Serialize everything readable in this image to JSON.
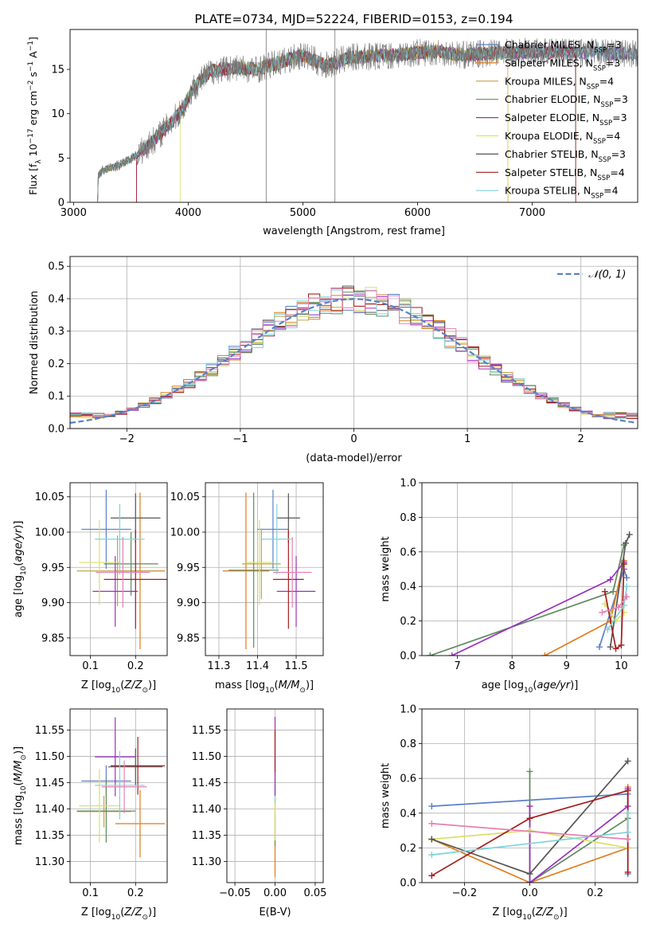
{
  "colors": {
    "c1": "#5b80c8",
    "c2": "#e07b1a",
    "c3": "#c2a24a",
    "c4": "#5f8a5f",
    "c5": "#9b2fbf",
    "c6": "#d9e06a",
    "c7": "#555555",
    "c8": "#a61c1c",
    "c9": "#7fd3d8",
    "pink": "#e87fb2",
    "spectrum": "#777777"
  },
  "chart_data": [
    {
      "id": "spectrum",
      "type": "line",
      "title": "PLATE=0734, MJD=52224, FIBERID=0153, z=0.194",
      "xlabel": "wavelength [Angstrom, rest frame]",
      "ylabel": "Flux [f_λ 10^-17 erg cm^-2 s^-1 A^-1]",
      "xlim": [
        2970,
        7920
      ],
      "ylim": [
        0,
        19.5
      ],
      "xticks": [
        "3000",
        "4000",
        "5000",
        "6000",
        "7000"
      ],
      "yticks": [
        "0",
        "5",
        "10",
        "15"
      ],
      "grid": false,
      "legend_position": "upper-right",
      "legend": [
        {
          "text": "Chabrier MILES, N",
          "sub": "SSP",
          "tail": "=3",
          "color": "#5b80c8"
        },
        {
          "text": "Salpeter MILES, N",
          "sub": "SSP",
          "tail": "=3",
          "color": "#e07b1a"
        },
        {
          "text": "Kroupa MILES, N",
          "sub": "SSP",
          "tail": "=4",
          "color": "#c2a24a"
        },
        {
          "text": "Chabrier ELODIE, N",
          "sub": "SSP",
          "tail": "=3",
          "color": "#5f8a5f"
        },
        {
          "text": "Salpeter ELODIE, N",
          "sub": "SSP",
          "tail": "=3",
          "color": "#9b2fbf"
        },
        {
          "text": "Kroupa ELODIE, N",
          "sub": "SSP",
          "tail": "=4",
          "color": "#d9e06a"
        },
        {
          "text": "Chabrier STELIB, N",
          "sub": "SSP",
          "tail": "=3",
          "color": "#555555"
        },
        {
          "text": "Salpeter STELIB, N",
          "sub": "SSP",
          "tail": "=4",
          "color": "#a61c1c"
        },
        {
          "text": "Kroupa STELIB, N",
          "sub": "SSP",
          "tail": "=4",
          "color": "#7fd3d8"
        }
      ],
      "continuum_nodes": [
        [
          3210,
          0
        ],
        [
          3215,
          3.0
        ],
        [
          3250,
          3.6
        ],
        [
          3400,
          4.2
        ],
        [
          3550,
          5.3
        ],
        [
          3700,
          7.0
        ],
        [
          3850,
          9.0
        ],
        [
          3950,
          10.5
        ],
        [
          4050,
          13.0
        ],
        [
          4200,
          14.8
        ],
        [
          4400,
          15.2
        ],
        [
          4600,
          15.0
        ],
        [
          4800,
          15.8
        ],
        [
          5000,
          16.6
        ],
        [
          5200,
          15.4
        ],
        [
          5400,
          16.3
        ],
        [
          5600,
          16.5
        ],
        [
          5800,
          16.6
        ],
        [
          6000,
          16.9
        ],
        [
          6200,
          17.0
        ],
        [
          6400,
          16.6
        ],
        [
          6600,
          16.8
        ],
        [
          6800,
          16.9
        ],
        [
          7000,
          17.0
        ],
        [
          7200,
          16.9
        ],
        [
          7500,
          16.9
        ],
        [
          7800,
          16.8
        ]
      ],
      "model_starts": [
        3210,
        3210,
        3210,
        3210,
        3550,
        3930,
        3210,
        3550,
        3210
      ],
      "model_ends": [
        7920,
        6790,
        6790,
        7380,
        7920,
        6790,
        7920,
        7380,
        7920
      ],
      "spikes": [
        4680,
        5280
      ]
    },
    {
      "id": "residuals",
      "type": "histogram",
      "xlabel": "(data-model)/error",
      "ylabel": "Normed distribution",
      "xlim": [
        -2.5,
        2.5
      ],
      "ylim": [
        0,
        0.53
      ],
      "xticks": [
        "−2",
        "−1",
        "0",
        "1",
        "2"
      ],
      "yticks": [
        "0.0",
        "0.1",
        "0.2",
        "0.3",
        "0.4",
        "0.5"
      ],
      "grid": true,
      "legend_position": "upper-right",
      "legend": [
        {
          "text": "𝒩(0, 1)",
          "color": "#5b80c8",
          "dashed": true
        }
      ],
      "bin_width": 0.1
    },
    {
      "id": "age-vs-metallicity",
      "type": "errorbar",
      "xlabel": "Z [log10(Z/Z⊙)]",
      "ylabel": "age  [log10(age/yr)]",
      "xlim": [
        0.055,
        0.27
      ],
      "ylim": [
        9.825,
        10.07
      ],
      "xticks": [
        "0.1",
        "0.2"
      ],
      "yticks": [
        "9.85",
        "9.90",
        "9.95",
        "10.00",
        "10.05"
      ],
      "grid": true,
      "points": [
        {
          "x": 0.135,
          "xerr": 0.055,
          "y": 10.004,
          "yerr": 0.056,
          "color": "#5b80c8"
        },
        {
          "x": 0.21,
          "xerr": 0.055,
          "y": 9.945,
          "yerr": 0.111,
          "color": "#e07b1a"
        },
        {
          "x": 0.16,
          "xerr": 0.09,
          "y": 9.945,
          "yerr": 0.05,
          "color": "#c2a24a"
        },
        {
          "x": 0.19,
          "xerr": 0.06,
          "y": 9.955,
          "yerr": 0.045,
          "color": "#5f8a5f"
        },
        {
          "x": 0.155,
          "xerr": 0.05,
          "y": 9.916,
          "yerr": 0.05,
          "color": "#9b2fbf"
        },
        {
          "x": 0.12,
          "xerr": 0.045,
          "y": 9.957,
          "yerr": 0.06,
          "color": "#d9e06a"
        },
        {
          "x": 0.2,
          "xerr": 0.055,
          "y": 10.02,
          "yerr": 0.035,
          "color": "#555555"
        },
        {
          "x": 0.2,
          "xerr": 0.07,
          "y": 9.933,
          "yerr": 0.07,
          "color": "#a61c1c"
        },
        {
          "x": 0.165,
          "xerr": 0.055,
          "y": 9.99,
          "yerr": 0.05,
          "color": "#7fd3d8"
        },
        {
          "x": 0.172,
          "xerr": 0.06,
          "y": 9.943,
          "yerr": 0.05,
          "color": "#e87fb2"
        }
      ]
    },
    {
      "id": "age-vs-mass",
      "type": "errorbar",
      "xlabel": "mass [log10(M/M⊙)]",
      "ylabel": "",
      "xlim": [
        11.265,
        11.57
      ],
      "ylim": [
        9.825,
        10.07
      ],
      "xticks": [
        "11.3",
        "11.4",
        "11.5"
      ],
      "yticks": [
        "9.85",
        "9.90",
        "9.95",
        "10.00",
        "10.05"
      ],
      "grid": true,
      "points": [
        {
          "x": 11.44,
          "xerr": 0.04,
          "y": 10.004,
          "yerr": 0.056,
          "color": "#5b80c8"
        },
        {
          "x": 11.37,
          "xerr": 0.06,
          "y": 9.945,
          "yerr": 0.111,
          "color": "#e07b1a"
        },
        {
          "x": 11.41,
          "xerr": 0.05,
          "y": 9.955,
          "yerr": 0.05,
          "color": "#c2a24a"
        },
        {
          "x": 11.39,
          "xerr": 0.065,
          "y": 9.946,
          "yerr": 0.11,
          "color": "#5f8a5f"
        },
        {
          "x": 11.5,
          "xerr": 0.05,
          "y": 9.916,
          "yerr": 0.05,
          "color": "#9b2fbf"
        },
        {
          "x": 11.405,
          "xerr": 0.035,
          "y": 9.957,
          "yerr": 0.06,
          "color": "#d9e06a"
        },
        {
          "x": 11.48,
          "xerr": 0.03,
          "y": 10.02,
          "yerr": 0.035,
          "color": "#555555"
        },
        {
          "x": 11.48,
          "xerr": 0.04,
          "y": 9.933,
          "yerr": 0.07,
          "color": "#a61c1c"
        },
        {
          "x": 11.45,
          "xerr": 0.04,
          "y": 9.99,
          "yerr": 0.05,
          "color": "#7fd3d8"
        },
        {
          "x": 11.49,
          "xerr": 0.05,
          "y": 9.943,
          "yerr": 0.05,
          "color": "#e87fb2"
        }
      ]
    },
    {
      "id": "weight-vs-age",
      "type": "line",
      "xlabel": "age  [log10(age/yr)]",
      "ylabel": "mass weight",
      "xlim": [
        6.35,
        10.3
      ],
      "ylim": [
        0,
        1.0
      ],
      "xticks": [
        "7",
        "8",
        "9",
        "10"
      ],
      "yticks": [
        "0.0",
        "0.2",
        "0.4",
        "0.6",
        "0.8",
        "1.0"
      ],
      "grid": true,
      "series": [
        {
          "color": "#5b80c8",
          "x": [
            9.6,
            10.05,
            10.1
          ],
          "y": [
            0.05,
            0.5,
            0.45
          ]
        },
        {
          "color": "#e07b1a",
          "x": [
            8.6,
            9.8,
            10.05
          ],
          "y": [
            0.0,
            0.2,
            0.55
          ]
        },
        {
          "color": "#5f8a5f",
          "x": [
            6.5,
            9.85,
            10.05
          ],
          "y": [
            0.0,
            0.37,
            0.64
          ]
        },
        {
          "color": "#9b2fbf",
          "x": [
            6.9,
            9.8,
            10.05
          ],
          "y": [
            0.0,
            0.44,
            0.54
          ]
        },
        {
          "color": "#d9e06a",
          "x": [
            9.7,
            9.9,
            10.05
          ],
          "y": [
            0.3,
            0.2,
            0.25
          ]
        },
        {
          "color": "#555555",
          "x": [
            9.8,
            10.08,
            10.15
          ],
          "y": [
            0.05,
            0.65,
            0.7
          ]
        },
        {
          "color": "#a61c1c",
          "x": [
            9.7,
            9.9,
            10.0,
            10.05
          ],
          "y": [
            0.37,
            0.04,
            0.06,
            0.53
          ]
        },
        {
          "color": "#7fd3d8",
          "x": [
            9.75,
            10.05,
            10.1
          ],
          "y": [
            0.15,
            0.29,
            0.4
          ]
        },
        {
          "color": "#e87fb2",
          "x": [
            9.65,
            9.95,
            10.1
          ],
          "y": [
            0.25,
            0.28,
            0.34
          ]
        }
      ]
    },
    {
      "id": "mass-vs-metallicity",
      "type": "errorbar",
      "xlabel": "Z [log10(Z/Z⊙)]",
      "ylabel": "mass [log10(M/M⊙)]",
      "xlim": [
        0.055,
        0.27
      ],
      "ylim": [
        11.26,
        11.59
      ],
      "xticks": [
        "0.1",
        "0.2"
      ],
      "yticks": [
        "11.30",
        "11.35",
        "11.40",
        "11.45",
        "11.50",
        "11.55"
      ],
      "grid": true,
      "points": [
        {
          "x": 0.135,
          "xerr": 0.055,
          "y": 11.453,
          "yerr": 0.03,
          "color": "#5b80c8"
        },
        {
          "x": 0.21,
          "xerr": 0.055,
          "y": 11.372,
          "yerr": 0.064,
          "color": "#e07b1a"
        },
        {
          "x": 0.13,
          "xerr": 0.06,
          "y": 11.395,
          "yerr": 0.03,
          "color": "#c2a24a"
        },
        {
          "x": 0.135,
          "xerr": 0.065,
          "y": 11.396,
          "yerr": 0.06,
          "color": "#5f8a5f"
        },
        {
          "x": 0.155,
          "xerr": 0.045,
          "y": 11.499,
          "yerr": 0.075,
          "color": "#9b2fbf"
        },
        {
          "x": 0.12,
          "xerr": 0.045,
          "y": 11.406,
          "yerr": 0.07,
          "color": "#d9e06a"
        },
        {
          "x": 0.2,
          "xerr": 0.06,
          "y": 11.48,
          "yerr": 0.035,
          "color": "#555555"
        },
        {
          "x": 0.205,
          "xerr": 0.06,
          "y": 11.482,
          "yerr": 0.055,
          "color": "#a61c1c"
        },
        {
          "x": 0.165,
          "xerr": 0.055,
          "y": 11.445,
          "yerr": 0.065,
          "color": "#7fd3d8"
        },
        {
          "x": 0.175,
          "xerr": 0.05,
          "y": 11.442,
          "yerr": 0.05,
          "color": "#e87fb2"
        }
      ]
    },
    {
      "id": "mass-vs-extinction",
      "type": "errorbar",
      "xlabel": "E(B-V)",
      "ylabel": "",
      "xlim": [
        -0.06,
        0.06
      ],
      "ylim": [
        11.26,
        11.59
      ],
      "xticks": [
        "−0.05",
        "0.00",
        "0.05"
      ],
      "yticks": [
        "11.30",
        "11.35",
        "11.40",
        "11.45",
        "11.50",
        "11.55"
      ],
      "grid": true,
      "points": [
        {
          "x": 0.0,
          "xerr": 0.0,
          "y": 11.37,
          "yerr": 0.1,
          "color": "#e07b1a"
        },
        {
          "x": 0.0,
          "xerr": 0.0,
          "y": 11.36,
          "yerr": 0.03,
          "color": "#5f8a5f"
        },
        {
          "x": 0.0,
          "xerr": 0.0,
          "y": 11.39,
          "yerr": 0.05,
          "color": "#d9e06a"
        },
        {
          "x": 0.0,
          "xerr": 0.0,
          "y": 11.45,
          "yerr": 0.04,
          "color": "#7fd3d8"
        },
        {
          "x": 0.0,
          "xerr": 0.0,
          "y": 11.5,
          "yerr": 0.075,
          "color": "#9b2fbf"
        },
        {
          "x": 0.0,
          "xerr": 0.0,
          "y": 11.51,
          "yerr": 0.04,
          "color": "#a61c1c"
        }
      ]
    },
    {
      "id": "weight-vs-metallicity",
      "type": "line",
      "xlabel": "Z [log10(Z/Z⊙)]",
      "ylabel": "mass weight",
      "xlim": [
        -0.33,
        0.33
      ],
      "ylim": [
        0,
        1.0
      ],
      "xticks": [
        "−0.2",
        "0.0",
        "0.2"
      ],
      "yticks": [
        "0.0",
        "0.2",
        "0.4",
        "0.6",
        "0.8",
        "1.0"
      ],
      "grid": true,
      "series": [
        {
          "color": "#5b80c8",
          "x": [
            -0.3,
            0.3,
            0.3
          ],
          "y": [
            0.44,
            0.51,
            0.05
          ]
        },
        {
          "color": "#e07b1a",
          "x": [
            -0.3,
            0.0,
            0.3,
            0.3
          ],
          "y": [
            0.25,
            0.0,
            0.2,
            0.55
          ]
        },
        {
          "color": "#5f8a5f",
          "x": [
            0.0,
            0.0,
            0.3
          ],
          "y": [
            0.64,
            0.0,
            0.37
          ]
        },
        {
          "color": "#9b2fbf",
          "x": [
            0.0,
            0.0,
            0.3,
            0.3
          ],
          "y": [
            0.44,
            0.0,
            0.44,
            0.54
          ]
        },
        {
          "color": "#d9e06a",
          "x": [
            -0.3,
            0.0,
            0.3
          ],
          "y": [
            0.25,
            0.3,
            0.2
          ]
        },
        {
          "color": "#555555",
          "x": [
            -0.3,
            0.0,
            0.3
          ],
          "y": [
            0.25,
            0.05,
            0.7
          ]
        },
        {
          "color": "#a61c1c",
          "x": [
            -0.3,
            0.0,
            0.3,
            0.3
          ],
          "y": [
            0.04,
            0.37,
            0.53,
            0.06
          ]
        },
        {
          "color": "#7fd3d8",
          "x": [
            -0.3,
            0.3,
            0.3
          ],
          "y": [
            0.16,
            0.29,
            0.4
          ]
        },
        {
          "color": "#e87fb2",
          "x": [
            -0.3,
            0.3
          ],
          "y": [
            0.34,
            0.25
          ]
        }
      ]
    }
  ]
}
